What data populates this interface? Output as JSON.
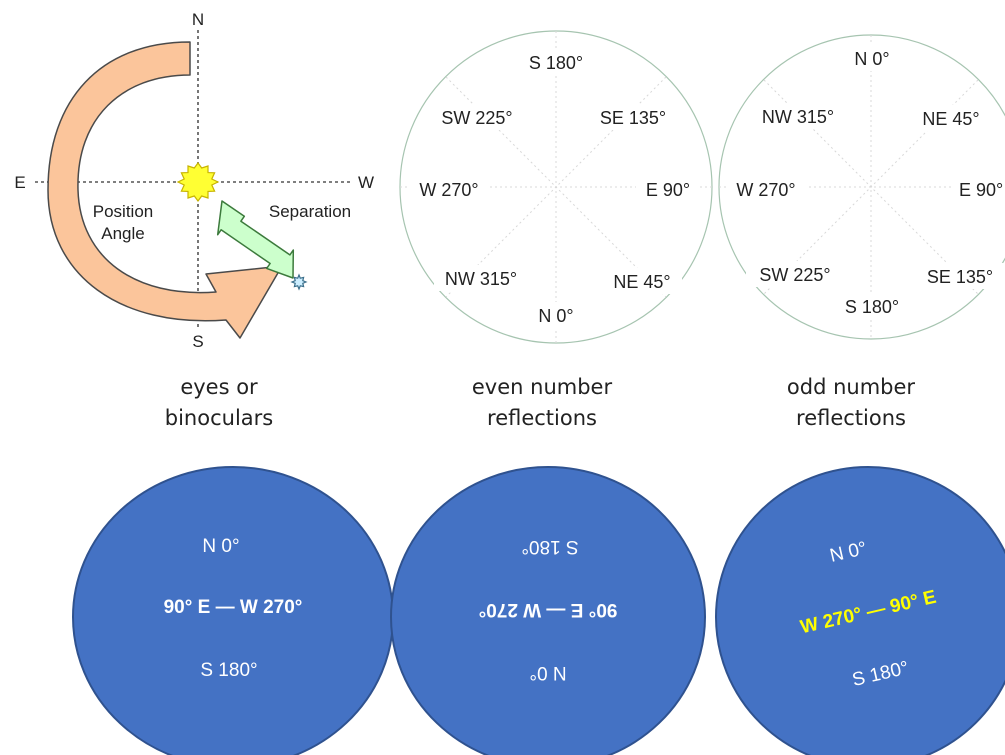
{
  "colors": {
    "arrow_fill": "#FBC59B",
    "arrow_stroke": "#4A4A4A",
    "sun_fill": "#FFFF33",
    "sun_stroke": "#C8B400",
    "sep_arrow_fill": "#CCFFCC",
    "sep_arrow_stroke": "#3C7A3C",
    "star_fill": "#CCEEFF",
    "circle_stroke": "#A6C4B0",
    "spoke": "#D8D8D8",
    "disc_fill": "#4472C4",
    "disc_stroke": "#2F528F",
    "highlight_text": "#FFFF00"
  },
  "diagram": {
    "compass": {
      "n": "N",
      "s": "S",
      "e": "E",
      "w": "W"
    },
    "position_angle_label": [
      "Position",
      "Angle"
    ],
    "separation_label": "Separation",
    "sun_icon": "sun-icon",
    "companion_icon": "companion-star-icon"
  },
  "views": [
    {
      "caption": [
        "eyes or",
        "binoculars"
      ],
      "disc": {
        "top": "N 0°",
        "middle": "90° E — W 270°",
        "bottom": "S 180°"
      }
    },
    {
      "caption": [
        "even number",
        "reflections"
      ],
      "circle": {
        "top": "S 180°",
        "upper_left": "SW 225°",
        "upper_right": "SE 135°",
        "left": "W 270°",
        "right": "E 90°",
        "lower_left": "NW 315°",
        "lower_right": "NE 45°",
        "bottom": "N 0°"
      },
      "disc": {
        "top": "S 180°",
        "middle": "90° E — W 270°",
        "bottom": "N 0°"
      }
    },
    {
      "caption": [
        "odd number",
        "reflections"
      ],
      "circle": {
        "top": "N 0°",
        "upper_left": "NW 315°",
        "upper_right": "NE 45°",
        "left": "W 270°",
        "right": "E 90°",
        "lower_left": "SW 225°",
        "lower_right": "SE 135°",
        "bottom": "S 180°"
      },
      "disc": {
        "top": "N 0°",
        "middle": "W 270° — 90° E",
        "bottom": "S 180°"
      }
    }
  ]
}
